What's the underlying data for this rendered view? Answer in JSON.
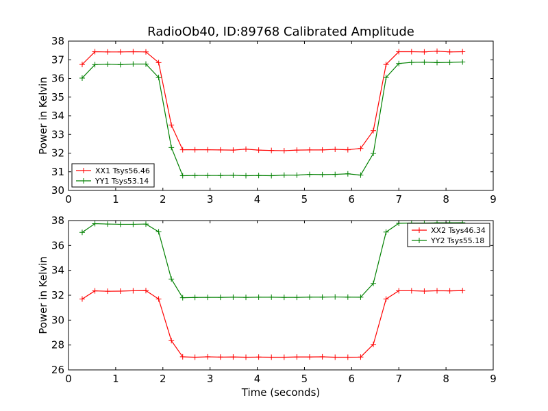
{
  "figure": {
    "title": "RadioOb40, ID:89768 Calibrated Amplitude"
  },
  "chart_data": [
    {
      "type": "line",
      "title": "RadioOb40, ID:89768 Calibrated Amplitude",
      "xlabel": "",
      "ylabel": "Power in Kelvin",
      "xlim": [
        0,
        9
      ],
      "ylim": [
        30,
        38
      ],
      "xticks": [
        0,
        1,
        2,
        3,
        4,
        5,
        6,
        7,
        8,
        9
      ],
      "yticks": [
        30,
        31,
        32,
        33,
        34,
        35,
        36,
        37,
        38
      ],
      "grid": false,
      "legend_position": "lower-left",
      "x": [
        0.29,
        0.56,
        0.83,
        1.1,
        1.37,
        1.64,
        1.91,
        2.18,
        2.42,
        2.68,
        2.95,
        3.22,
        3.49,
        3.76,
        4.03,
        4.3,
        4.57,
        4.84,
        5.11,
        5.38,
        5.65,
        5.92,
        6.19,
        6.46,
        6.73,
        7.0,
        7.27,
        7.54,
        7.81,
        8.08,
        8.35
      ],
      "series": [
        {
          "name": "XX1 Tsys56.46",
          "color": "#ff0000",
          "values": [
            36.75,
            37.43,
            37.42,
            37.42,
            37.43,
            37.42,
            36.85,
            33.5,
            32.18,
            32.18,
            32.18,
            32.17,
            32.16,
            32.21,
            32.16,
            32.14,
            32.13,
            32.16,
            32.17,
            32.17,
            32.2,
            32.18,
            32.25,
            33.2,
            36.75,
            37.43,
            37.43,
            37.42,
            37.46,
            37.42,
            37.43
          ]
        },
        {
          "name": "YY1 Tsys53.14",
          "color": "#008000",
          "values": [
            36.02,
            36.74,
            36.76,
            36.74,
            36.77,
            36.77,
            36.05,
            32.3,
            30.79,
            30.8,
            30.8,
            30.8,
            30.81,
            30.79,
            30.8,
            30.79,
            30.82,
            30.82,
            30.86,
            30.85,
            30.86,
            30.89,
            30.82,
            31.98,
            36.05,
            36.8,
            36.86,
            36.87,
            36.85,
            36.86,
            36.88
          ]
        }
      ]
    },
    {
      "type": "line",
      "title": "",
      "xlabel": "Time (seconds)",
      "ylabel": "Power in Kelvin",
      "xlim": [
        0,
        9
      ],
      "ylim": [
        26,
        38
      ],
      "xticks": [
        0,
        1,
        2,
        3,
        4,
        5,
        6,
        7,
        8,
        9
      ],
      "yticks": [
        26,
        28,
        30,
        32,
        34,
        36,
        38
      ],
      "grid": false,
      "legend_position": "upper-right",
      "x": [
        0.29,
        0.56,
        0.83,
        1.1,
        1.37,
        1.64,
        1.91,
        2.18,
        2.42,
        2.68,
        2.95,
        3.22,
        3.49,
        3.76,
        4.03,
        4.3,
        4.57,
        4.84,
        5.11,
        5.38,
        5.65,
        5.92,
        6.19,
        6.46,
        6.73,
        7.0,
        7.27,
        7.54,
        7.81,
        8.08,
        8.35
      ],
      "series": [
        {
          "name": "XX2 Tsys46.34",
          "color": "#ff0000",
          "values": [
            31.7,
            32.35,
            32.32,
            32.33,
            32.36,
            32.37,
            31.7,
            28.35,
            27.05,
            27.02,
            27.05,
            27.03,
            27.04,
            27.02,
            27.03,
            27.02,
            27.02,
            27.04,
            27.04,
            27.05,
            27.02,
            27.02,
            27.03,
            28.05,
            31.7,
            32.36,
            32.36,
            32.33,
            32.36,
            32.35,
            32.37
          ]
        },
        {
          "name": "YY2 Tsys55.18",
          "color": "#008000",
          "values": [
            37.05,
            37.75,
            37.72,
            37.7,
            37.7,
            37.72,
            37.1,
            33.3,
            31.8,
            31.82,
            31.83,
            31.83,
            31.84,
            31.83,
            31.84,
            31.84,
            31.83,
            31.83,
            31.85,
            31.85,
            31.86,
            31.85,
            31.84,
            32.95,
            37.08,
            37.78,
            37.8,
            37.8,
            37.82,
            37.82,
            37.83
          ]
        }
      ]
    }
  ]
}
